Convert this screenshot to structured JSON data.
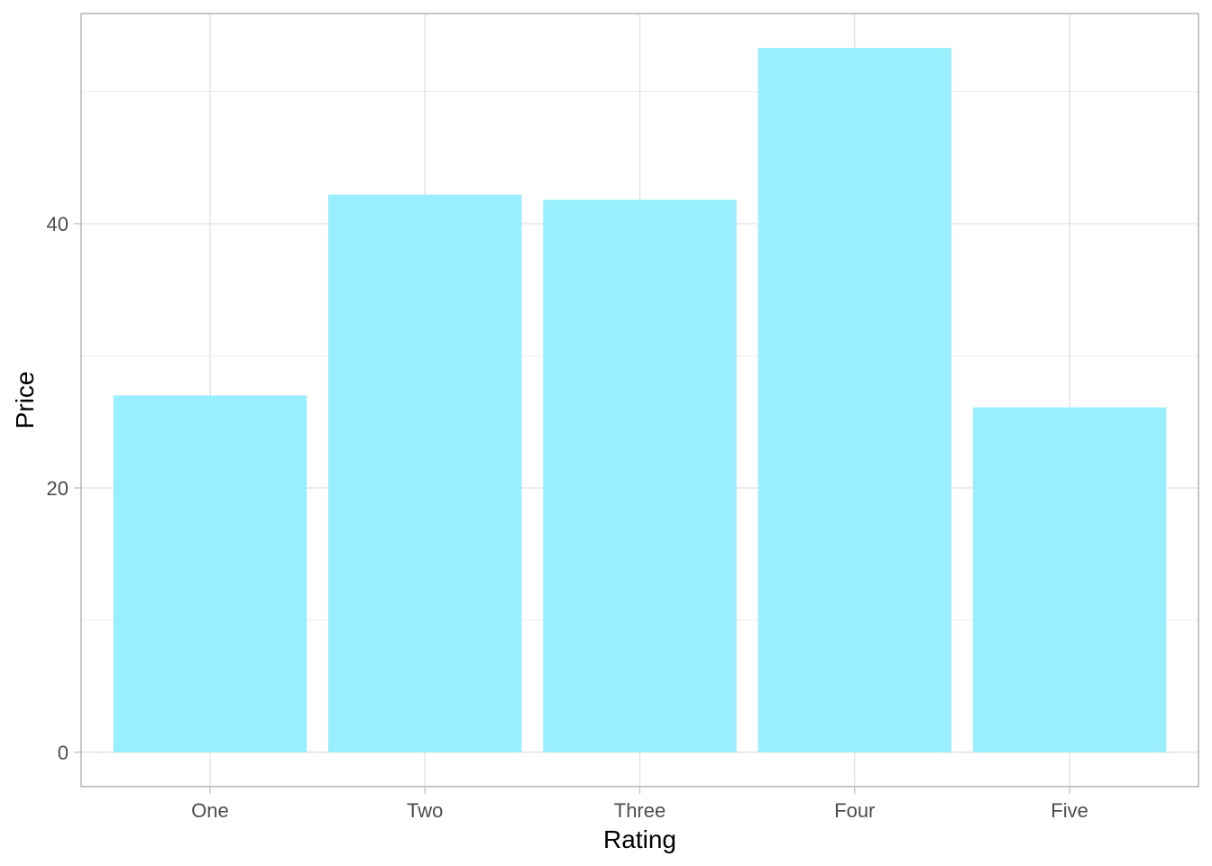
{
  "chart_data": {
    "type": "bar",
    "title": "",
    "xlabel": "Rating",
    "ylabel": "Price",
    "categories": [
      "One",
      "Two",
      "Three",
      "Four",
      "Five"
    ],
    "values": [
      27.0,
      42.2,
      41.8,
      53.3,
      26.1
    ],
    "ylim": [
      -2.6,
      55.9
    ],
    "yticks": [
      0,
      20,
      40
    ],
    "yticks_minor": [
      10,
      30,
      50
    ],
    "grid": true,
    "legend": "none",
    "colors": {
      "bar": "#99EEFF",
      "background": "#FFFFFF"
    }
  }
}
